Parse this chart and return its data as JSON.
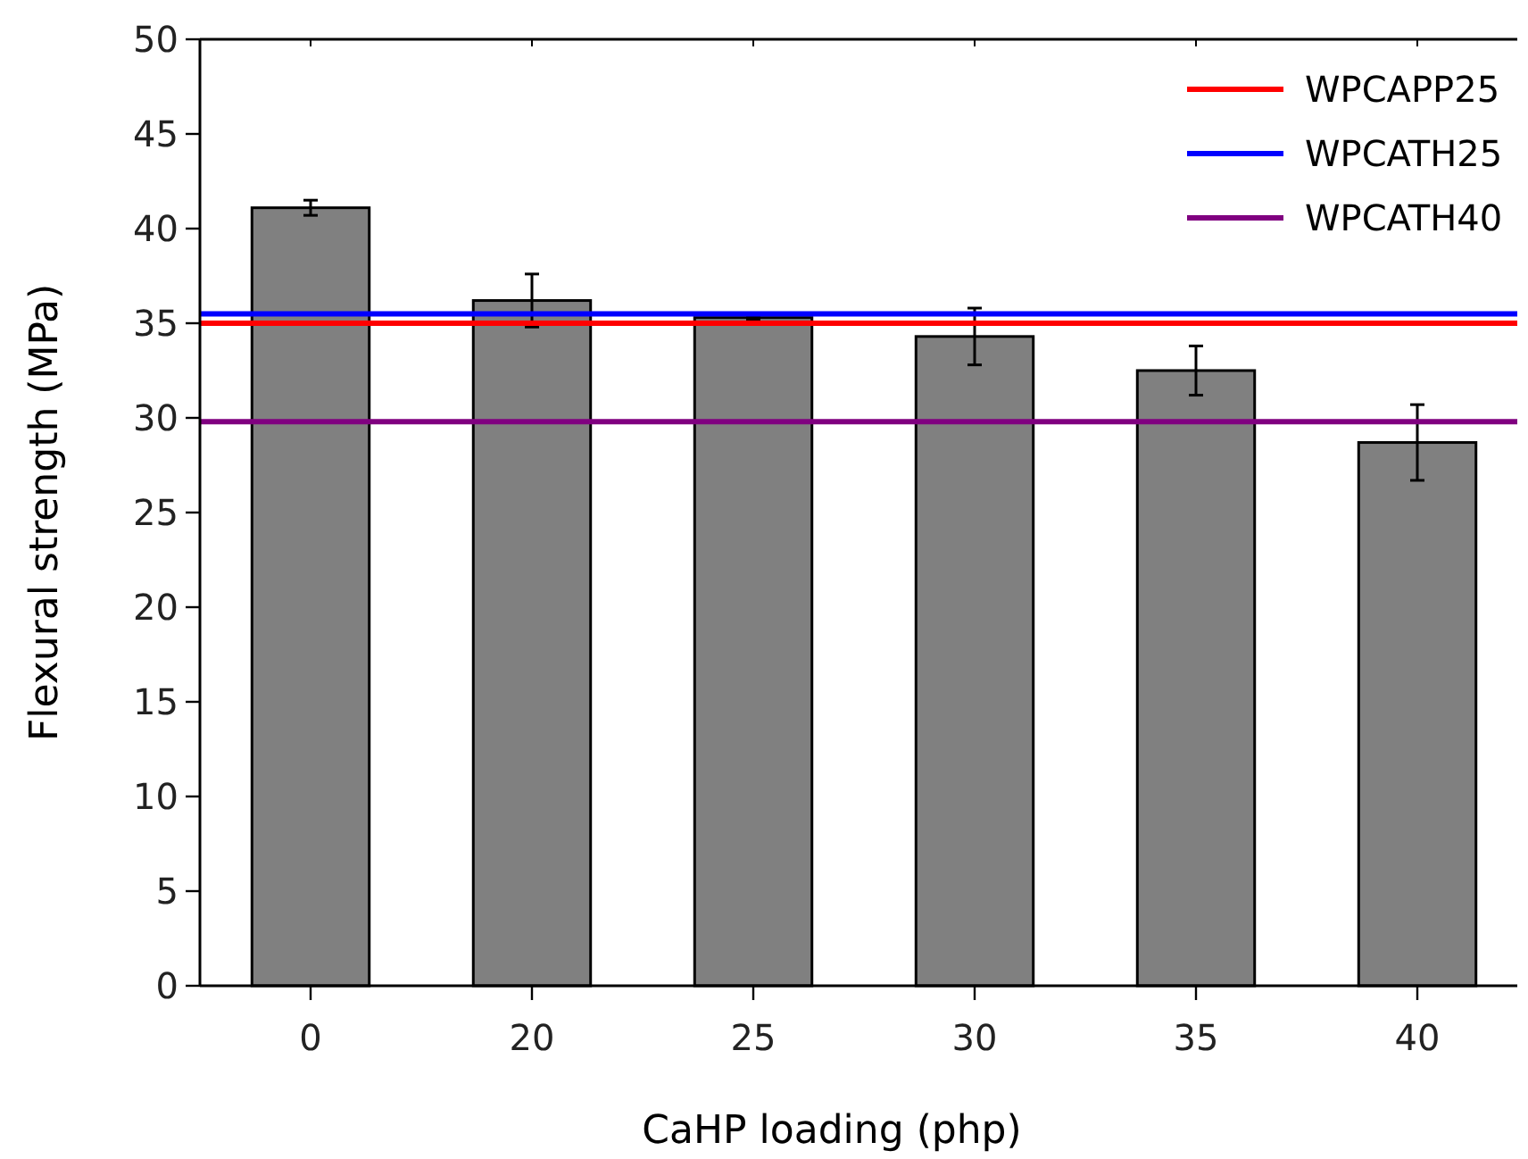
{
  "chart_data": {
    "type": "bar",
    "xlabel": "CaHP loading (php)",
    "ylabel": "Flexural strength (MPa)",
    "categories": [
      "0",
      "20",
      "25",
      "30",
      "35",
      "40"
    ],
    "values": [
      41.1,
      36.2,
      35.3,
      34.3,
      32.5,
      28.7
    ],
    "errors": [
      0.4,
      1.4,
      0.1,
      1.5,
      1.3,
      2.0
    ],
    "color": "#808080",
    "ylim": [
      0,
      50
    ],
    "yticks": [
      0,
      5,
      10,
      15,
      20,
      25,
      30,
      35,
      40,
      45,
      50
    ],
    "ref_lines": [
      {
        "axis": "y",
        "value": 35.0,
        "label": "WPCAPP25",
        "color": "#ff0000"
      },
      {
        "axis": "y",
        "value": 35.5,
        "label": "WPCATH25",
        "color": "#0000ff"
      },
      {
        "axis": "y",
        "value": 29.8,
        "label": "WPCATH40",
        "color": "#800080"
      }
    ],
    "legend": "top right"
  }
}
